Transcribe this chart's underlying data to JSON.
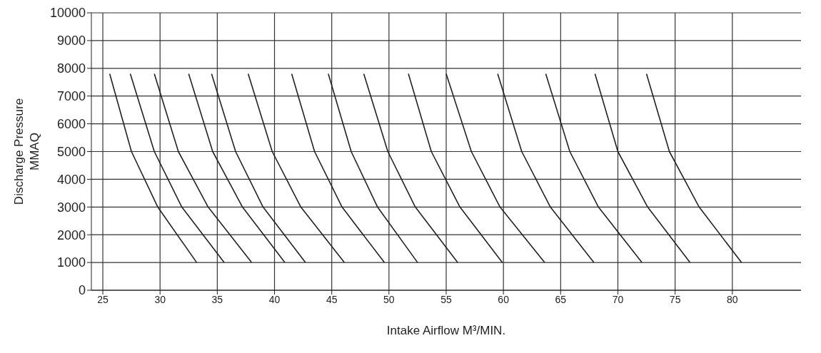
{
  "chart_data": {
    "type": "line",
    "xlabel": "Intake Airflow M³/MIN.",
    "ylabel": "Discharge Pressure MMAQ",
    "xlim": [
      24,
      86
    ],
    "ylim": [
      0,
      10000
    ],
    "xticks": [
      25,
      30,
      35,
      40,
      45,
      50,
      55,
      60,
      65,
      70,
      75,
      80
    ],
    "yticks": [
      0,
      1000,
      2000,
      3000,
      4000,
      5000,
      6000,
      7000,
      8000,
      9000,
      10000
    ],
    "grid": true,
    "legend": false,
    "marker": "none",
    "line_style": "solid",
    "series": [
      {
        "color": "#222222",
        "x": [
          25.6,
          27.5,
          29.8,
          33.2
        ],
        "values": [
          7800,
          5000,
          3000,
          1000
        ]
      },
      {
        "color": "#222222",
        "x": [
          27.4,
          29.5,
          31.9,
          35.6
        ],
        "values": [
          7800,
          5000,
          3000,
          1000
        ]
      },
      {
        "color": "#222222",
        "x": [
          29.5,
          31.6,
          34.2,
          38.0
        ],
        "values": [
          7800,
          5000,
          3000,
          1000
        ]
      },
      {
        "color": "#222222",
        "x": [
          32.5,
          34.6,
          37.2,
          40.9
        ],
        "values": [
          7800,
          5000,
          3000,
          1000
        ]
      },
      {
        "color": "#222222",
        "x": [
          34.5,
          36.6,
          39.0,
          42.7
        ],
        "values": [
          7800,
          5000,
          3000,
          1000
        ]
      },
      {
        "color": "#222222",
        "x": [
          37.7,
          39.8,
          42.3,
          46.1
        ],
        "values": [
          7800,
          5000,
          3000,
          1000
        ]
      },
      {
        "color": "#222222",
        "x": [
          41.5,
          43.5,
          45.9,
          49.6
        ],
        "values": [
          7800,
          5000,
          3000,
          1000
        ]
      },
      {
        "color": "#222222",
        "x": [
          44.7,
          46.7,
          49.0,
          52.5
        ],
        "values": [
          7800,
          5000,
          3000,
          1000
        ]
      },
      {
        "color": "#222222",
        "x": [
          47.8,
          49.9,
          52.3,
          56.0
        ],
        "values": [
          7800,
          5000,
          3000,
          1000
        ]
      },
      {
        "color": "#222222",
        "x": [
          51.7,
          53.7,
          56.2,
          59.9
        ],
        "values": [
          7800,
          5000,
          3000,
          1000
        ]
      },
      {
        "color": "#222222",
        "x": [
          55.0,
          57.2,
          59.7,
          63.6
        ],
        "values": [
          7800,
          5000,
          3000,
          1000
        ]
      },
      {
        "color": "#222222",
        "x": [
          59.5,
          61.6,
          64.1,
          67.9
        ],
        "values": [
          7800,
          5000,
          3000,
          1000
        ]
      },
      {
        "color": "#222222",
        "x": [
          63.7,
          65.8,
          68.3,
          72.1
        ],
        "values": [
          7800,
          5000,
          3000,
          1000
        ]
      },
      {
        "color": "#222222",
        "x": [
          68.0,
          70.0,
          72.6,
          76.3
        ],
        "values": [
          7800,
          5000,
          3000,
          1000
        ]
      },
      {
        "color": "#222222",
        "x": [
          72.5,
          74.5,
          77.1,
          80.8
        ],
        "values": [
          7800,
          5000,
          3000,
          1000
        ]
      }
    ]
  }
}
